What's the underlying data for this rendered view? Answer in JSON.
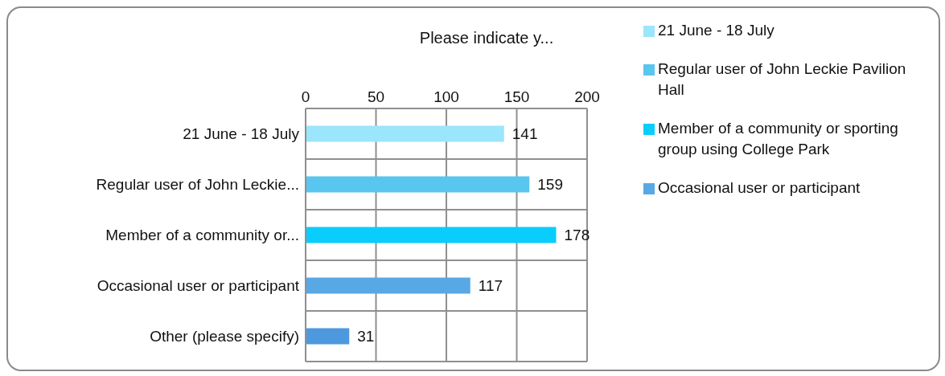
{
  "chart_data": {
    "type": "bar",
    "orientation": "horizontal",
    "stacked": true,
    "title": "Please indicate y...",
    "categories": [
      "21 June - 18 July",
      "Regular user of John Leckie...",
      "Member of a community or...",
      "Occasional user or participant",
      "Other (please specify)"
    ],
    "series": [
      {
        "name": "21 June - 18 July",
        "color": "#9be5fd",
        "values": [
          141,
          null,
          null,
          null,
          null
        ]
      },
      {
        "name": "Regular user of John Leckie Pavilion Hall",
        "color": "#58c6ee",
        "values": [
          null,
          159,
          null,
          null,
          null
        ]
      },
      {
        "name": "Member of a community or sporting group using College Park",
        "color": "#09cdfd",
        "values": [
          null,
          null,
          178,
          null,
          null
        ]
      },
      {
        "name": "Occasional user or participant",
        "color": "#58a8e6",
        "values": [
          null,
          null,
          null,
          117,
          null
        ]
      },
      {
        "color": "#4d99de",
        "values": [
          null,
          null,
          null,
          null,
          31
        ]
      }
    ],
    "xlim": [
      0,
      200
    ],
    "xticks": [
      0,
      50,
      100,
      150,
      200
    ],
    "grid": true,
    "data_labels": true,
    "legend": "right"
  }
}
